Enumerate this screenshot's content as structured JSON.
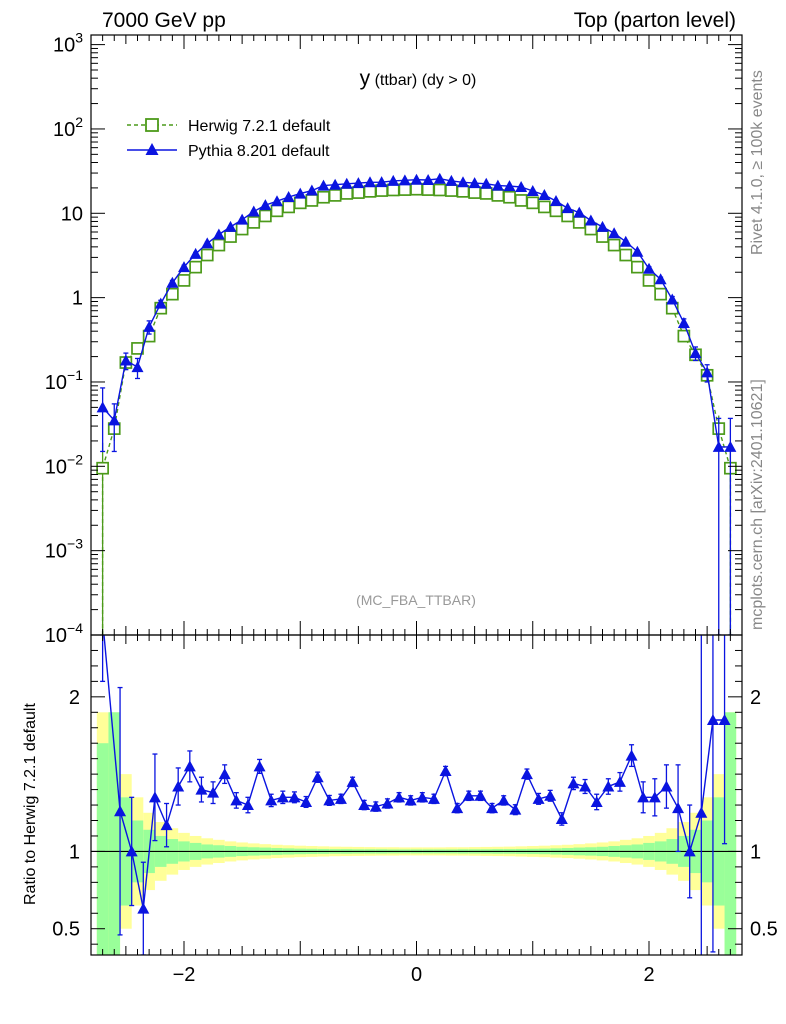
{
  "header": {
    "left": "7000 GeV pp",
    "right": "Top (parton level)"
  },
  "side_labels": {
    "rivet": "Rivet 4.1.0, ≥ 100k events",
    "mcplots": "mcplots.cern.ch [arXiv:2401.10621]"
  },
  "colors": {
    "herwig": "#4c9a1a",
    "pythia": "#0a14e0",
    "band_green": "#99ff99",
    "band_yellow": "#ffff99"
  },
  "chart_data": [
    {
      "type": "line",
      "title_main": "y",
      "title_rest": " (ttbar) (dy > 0)",
      "analysis": "(MC_FBA_TTBAR)",
      "y_scale": "log",
      "xlim": [
        -2.8,
        2.8
      ],
      "ylim": [
        0.0001,
        1300
      ],
      "y_ticks": [
        {
          "value": 1000,
          "base": "10",
          "exp": "3"
        },
        {
          "value": 100,
          "base": "10",
          "exp": "2"
        },
        {
          "value": 10,
          "base": "10",
          "exp": ""
        },
        {
          "value": 1,
          "base": "1",
          "exp": ""
        },
        {
          "value": 0.1,
          "base": "10",
          "exp": "−1"
        },
        {
          "value": 0.01,
          "base": "10",
          "exp": "−2"
        },
        {
          "value": 0.001,
          "base": "10",
          "exp": "−3"
        },
        {
          "value": 0.0001,
          "base": "10",
          "exp": "−4"
        }
      ],
      "legend": {
        "position": "top-left",
        "entries": [
          "Herwig 7.2.1 default",
          "Pythia 8.201 default"
        ]
      },
      "series": [
        {
          "name": "Herwig 7.2.1 default",
          "marker": "open-square",
          "line": "dashed",
          "x": [
            -2.7,
            -2.6,
            -2.5,
            -2.4,
            -2.3,
            -2.2,
            -2.1,
            -2.0,
            -1.9,
            -1.8,
            -1.7,
            -1.6,
            -1.5,
            -1.4,
            -1.3,
            -1.2,
            -1.1,
            -1.0,
            -0.9,
            -0.8,
            -0.7,
            -0.6,
            -0.5,
            -0.4,
            -0.3,
            -0.2,
            -0.1,
            0.0,
            0.1,
            0.2,
            0.3,
            0.4,
            0.5,
            0.6,
            0.7,
            0.8,
            0.9,
            1.0,
            1.1,
            1.2,
            1.3,
            1.4,
            1.5,
            1.6,
            1.7,
            1.8,
            1.9,
            2.0,
            2.1,
            2.2,
            2.3,
            2.4,
            2.5,
            2.6,
            2.7
          ],
          "values": [
            0.0095,
            0.028,
            0.17,
            0.25,
            0.35,
            0.75,
            1.1,
            1.6,
            2.3,
            3.2,
            4.2,
            5.3,
            6.5,
            7.8,
            9.3,
            10.7,
            11.9,
            13.3,
            14.2,
            15.5,
            16.3,
            17.2,
            17.6,
            18.2,
            18.6,
            18.9,
            19.1,
            19.3,
            19.1,
            18.9,
            18.6,
            18.2,
            17.6,
            17.2,
            16.3,
            15.5,
            14.2,
            13.3,
            11.9,
            10.7,
            9.3,
            7.8,
            6.5,
            5.3,
            4.2,
            3.2,
            2.3,
            1.6,
            1.1,
            0.75,
            0.35,
            0.21,
            0.12,
            0.028,
            0.0095
          ],
          "err_up": [
            0.0095,
            0.008,
            0.03,
            0.03,
            0.03,
            0.04,
            0.05,
            0.06,
            0.08,
            0.1,
            0.1,
            0.12,
            0.14,
            0.16,
            0.18,
            0.2,
            0.2,
            0.2,
            0.22,
            0.22,
            0.24,
            0.24,
            0.25,
            0.25,
            0.25,
            0.25,
            0.25,
            0.25,
            0.25,
            0.25,
            0.25,
            0.25,
            0.25,
            0.24,
            0.24,
            0.22,
            0.22,
            0.2,
            0.2,
            0.2,
            0.18,
            0.16,
            0.14,
            0.12,
            0.1,
            0.1,
            0.08,
            0.06,
            0.05,
            0.04,
            0.03,
            0.03,
            0.02,
            0.012,
            0.0095
          ]
        },
        {
          "name": "Pythia 8.201 default",
          "marker": "filled-triangle",
          "line": "solid",
          "x": [
            -2.7,
            -2.6,
            -2.5,
            -2.4,
            -2.3,
            -2.2,
            -2.1,
            -2.0,
            -1.9,
            -1.8,
            -1.7,
            -1.6,
            -1.5,
            -1.4,
            -1.3,
            -1.2,
            -1.1,
            -1.0,
            -0.9,
            -0.8,
            -0.7,
            -0.6,
            -0.5,
            -0.4,
            -0.3,
            -0.2,
            -0.1,
            0.0,
            0.1,
            0.2,
            0.3,
            0.4,
            0.5,
            0.6,
            0.7,
            0.8,
            0.9,
            1.0,
            1.1,
            1.2,
            1.3,
            1.4,
            1.5,
            1.6,
            1.7,
            1.8,
            1.9,
            2.0,
            2.1,
            2.2,
            2.3,
            2.4,
            2.5,
            2.6,
            2.7
          ],
          "values": [
            0.05,
            0.035,
            0.18,
            0.15,
            0.45,
            0.85,
            1.5,
            2.3,
            3.3,
            4.4,
            5.6,
            6.9,
            8.4,
            10.5,
            12.5,
            13.9,
            15.6,
            17.1,
            18.6,
            21.3,
            21.8,
            22.4,
            22.8,
            23.3,
            23.4,
            24.2,
            24.6,
            25.0,
            24.8,
            25.7,
            24.2,
            23.3,
            22.8,
            22.4,
            21.3,
            21.0,
            20.5,
            18.4,
            16.5,
            14.0,
            11.5,
            10.2,
            8.2,
            6.9,
            5.8,
            4.6,
            3.5,
            2.2,
            1.65,
            0.95,
            0.5,
            0.22,
            0.13,
            0.017,
            0.017
          ],
          "err_up": [
            0.035,
            0.02,
            0.04,
            0.04,
            0.08,
            0.08,
            0.1,
            0.12,
            0.14,
            0.15,
            0.16,
            0.18,
            0.2,
            0.22,
            0.24,
            0.25,
            0.26,
            0.28,
            0.3,
            0.3,
            0.3,
            0.3,
            0.3,
            0.3,
            0.3,
            0.3,
            0.3,
            0.3,
            0.3,
            0.3,
            0.3,
            0.3,
            0.3,
            0.3,
            0.3,
            0.3,
            0.3,
            0.28,
            0.26,
            0.25,
            0.24,
            0.22,
            0.2,
            0.18,
            0.16,
            0.15,
            0.14,
            0.12,
            0.1,
            0.08,
            0.06,
            0.04,
            0.03,
            0.02,
            0.02
          ]
        }
      ]
    },
    {
      "type": "line",
      "ylabel": "Ratio to Herwig 7.2.1 default",
      "xlim": [
        -2.8,
        2.8
      ],
      "ylim": [
        0.33,
        2.4
      ],
      "x_ticks": [
        {
          "value": -2,
          "label": "−2"
        },
        {
          "value": 0,
          "label": "0"
        },
        {
          "value": 2,
          "label": "2"
        }
      ],
      "y_ticks": [
        {
          "value": 2,
          "label": "2"
        },
        {
          "value": 1,
          "label": "1"
        },
        {
          "value": 0.5,
          "label": "0.5"
        }
      ],
      "band_half_width": {
        "x_lo": [
          -2.75,
          -2.65,
          -2.55,
          -2.45,
          -2.35,
          -2.25,
          -2.15,
          -2.05,
          -1.95,
          -1.85,
          -1.75,
          -1.65,
          -1.55,
          -1.45,
          -1.35,
          -1.25,
          -1.15,
          -1.05,
          -0.95,
          -0.85,
          -0.75,
          -0.65,
          -0.55,
          -0.45,
          -0.35,
          -0.25,
          -0.15,
          -0.05,
          0.05,
          0.15,
          0.25,
          0.35,
          0.45,
          0.55,
          0.65,
          0.75,
          0.85,
          0.95,
          1.05,
          1.15,
          1.25,
          1.35,
          1.45,
          1.55,
          1.65,
          1.75,
          1.85,
          1.95,
          2.05,
          2.15,
          2.25,
          2.35,
          2.45,
          2.55,
          2.65
        ],
        "green": [
          0.7,
          0.9,
          0.35,
          0.2,
          0.14,
          0.1,
          0.08,
          0.065,
          0.055,
          0.045,
          0.04,
          0.035,
          0.03,
          0.027,
          0.025,
          0.022,
          0.02,
          0.018,
          0.017,
          0.016,
          0.015,
          0.015,
          0.014,
          0.014,
          0.014,
          0.013,
          0.013,
          0.013,
          0.013,
          0.013,
          0.013,
          0.014,
          0.014,
          0.014,
          0.015,
          0.015,
          0.016,
          0.017,
          0.018,
          0.02,
          0.022,
          0.025,
          0.027,
          0.03,
          0.035,
          0.04,
          0.045,
          0.055,
          0.065,
          0.08,
          0.1,
          0.14,
          0.2,
          0.35,
          0.9
        ],
        "yellow": [
          0.9,
          0.9,
          0.5,
          0.35,
          0.25,
          0.19,
          0.15,
          0.12,
          0.1,
          0.085,
          0.075,
          0.065,
          0.058,
          0.052,
          0.047,
          0.043,
          0.04,
          0.037,
          0.035,
          0.033,
          0.031,
          0.03,
          0.029,
          0.028,
          0.027,
          0.027,
          0.026,
          0.026,
          0.026,
          0.026,
          0.027,
          0.027,
          0.028,
          0.029,
          0.03,
          0.031,
          0.033,
          0.035,
          0.037,
          0.04,
          0.043,
          0.047,
          0.052,
          0.058,
          0.065,
          0.075,
          0.085,
          0.1,
          0.12,
          0.15,
          0.19,
          0.25,
          0.35,
          0.5,
          0.9
        ]
      },
      "pythia_ratio": {
        "x": [
          -2.7,
          -2.55,
          -2.45,
          -2.35,
          -2.25,
          -2.15,
          -2.05,
          -1.95,
          -1.85,
          -1.75,
          -1.65,
          -1.55,
          -1.45,
          -1.35,
          -1.25,
          -1.15,
          -1.05,
          -0.95,
          -0.85,
          -0.75,
          -0.65,
          -0.55,
          -0.45,
          -0.35,
          -0.25,
          -0.15,
          -0.05,
          0.05,
          0.15,
          0.25,
          0.35,
          0.45,
          0.55,
          0.65,
          0.75,
          0.85,
          0.95,
          1.05,
          1.15,
          1.25,
          1.35,
          1.45,
          1.55,
          1.65,
          1.75,
          1.85,
          1.95,
          2.05,
          2.15,
          2.25,
          2.35,
          2.45,
          2.55,
          2.65
        ],
        "values": [
          2.5,
          1.26,
          1.0,
          0.63,
          1.35,
          1.17,
          1.42,
          1.55,
          1.4,
          1.38,
          1.5,
          1.33,
          1.3,
          1.55,
          1.33,
          1.35,
          1.35,
          1.32,
          1.48,
          1.33,
          1.34,
          1.45,
          1.3,
          1.29,
          1.31,
          1.35,
          1.33,
          1.35,
          1.34,
          1.52,
          1.28,
          1.36,
          1.36,
          1.28,
          1.33,
          1.27,
          1.5,
          1.34,
          1.36,
          1.21,
          1.44,
          1.42,
          1.32,
          1.42,
          1.45,
          1.62,
          1.35,
          1.35,
          1.42,
          1.28,
          1.0,
          1.25,
          1.85,
          1.85
        ],
        "err": [
          0.4,
          0.8,
          0.35,
          0.3,
          0.28,
          0.14,
          0.12,
          0.1,
          0.08,
          0.07,
          0.06,
          0.05,
          0.05,
          0.045,
          0.04,
          0.04,
          0.035,
          0.035,
          0.033,
          0.032,
          0.03,
          0.03,
          0.03,
          0.03,
          0.03,
          0.03,
          0.03,
          0.03,
          0.03,
          0.03,
          0.03,
          0.03,
          0.03,
          0.03,
          0.03,
          0.032,
          0.033,
          0.035,
          0.035,
          0.04,
          0.04,
          0.045,
          0.05,
          0.05,
          0.06,
          0.07,
          0.1,
          0.12,
          0.14,
          0.28,
          0.3,
          1.2,
          1.5,
          0.8
        ]
      }
    }
  ]
}
